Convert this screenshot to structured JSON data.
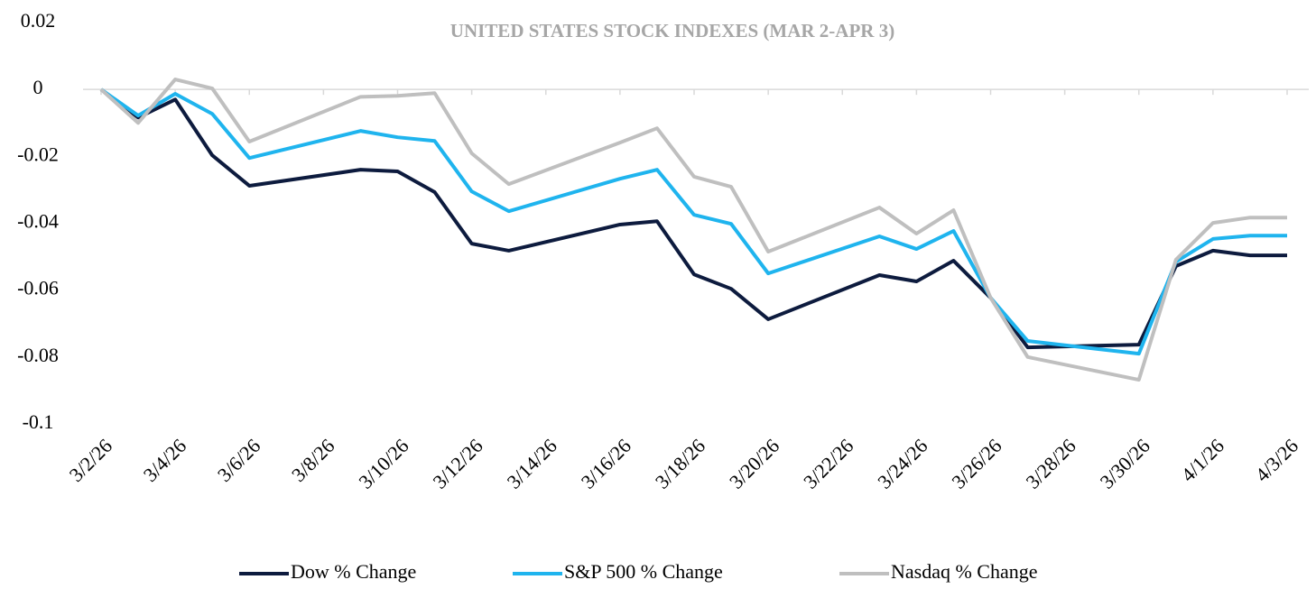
{
  "chart_data": {
    "type": "line",
    "title": "UNITED STATES STOCK INDEXES (MAR 2-APR 3)",
    "x": [
      "3/2/26",
      "3/3/26",
      "3/4/26",
      "3/5/26",
      "3/6/26",
      "3/9/26",
      "3/10/26",
      "3/11/26",
      "3/12/26",
      "3/13/26",
      "3/16/26",
      "3/17/26",
      "3/18/26",
      "3/19/26",
      "3/20/26",
      "3/23/26",
      "3/24/26",
      "3/25/26",
      "3/26/26",
      "3/27/26",
      "3/30/26",
      "3/31/26",
      "4/1/26",
      "4/2/26",
      "4/3/26"
    ],
    "xlim": [
      "3/2/26",
      "4/3/26"
    ],
    "xticks": [
      "3/2/26",
      "3/4/26",
      "3/6/26",
      "3/8/26",
      "3/10/26",
      "3/12/26",
      "3/14/26",
      "3/16/26",
      "3/18/26",
      "3/20/26",
      "3/22/26",
      "3/24/26",
      "3/26/26",
      "3/28/26",
      "3/30/26",
      "4/1/26",
      "4/3/26"
    ],
    "ylim": [
      -0.1,
      0.02
    ],
    "yticks": [
      0.02,
      0,
      -0.02,
      -0.04,
      -0.06,
      -0.08,
      -0.1
    ],
    "grid": false,
    "legend": "bottom",
    "series": [
      {
        "name": "Dow % Change",
        "color": "#0d1b3e",
        "values": [
          0,
          -0.0084,
          -0.003,
          -0.0197,
          -0.0288,
          -0.024,
          -0.0245,
          -0.0307,
          -0.0461,
          -0.0482,
          -0.0404,
          -0.0394,
          -0.0553,
          -0.0596,
          -0.0687,
          -0.0555,
          -0.0574,
          -0.0512,
          -0.0623,
          -0.0771,
          -0.0763,
          -0.0528,
          -0.0482,
          -0.0496,
          -0.0496
        ]
      },
      {
        "name": "S&P 500 % Change",
        "color": "#1fb4ee",
        "values": [
          0,
          -0.0078,
          -0.0013,
          -0.0073,
          -0.0205,
          -0.0124,
          -0.0143,
          -0.0154,
          -0.0305,
          -0.0364,
          -0.0267,
          -0.024,
          -0.0375,
          -0.0402,
          -0.055,
          -0.0439,
          -0.0477,
          -0.0423,
          -0.0623,
          -0.0752,
          -0.079,
          -0.0515,
          -0.0447,
          -0.0437,
          -0.0437
        ]
      },
      {
        "name": "Nasdaq % Change",
        "color": "#bfbfbf",
        "values": [
          0,
          -0.01,
          0.003,
          0.0003,
          -0.0156,
          -0.0022,
          -0.0019,
          -0.0011,
          -0.0191,
          -0.0283,
          -0.0159,
          -0.0116,
          -0.0261,
          -0.0291,
          -0.0485,
          -0.0353,
          -0.0431,
          -0.0361,
          -0.0623,
          -0.08,
          -0.0868,
          -0.0509,
          -0.0399,
          -0.0383,
          -0.0383
        ]
      }
    ]
  }
}
